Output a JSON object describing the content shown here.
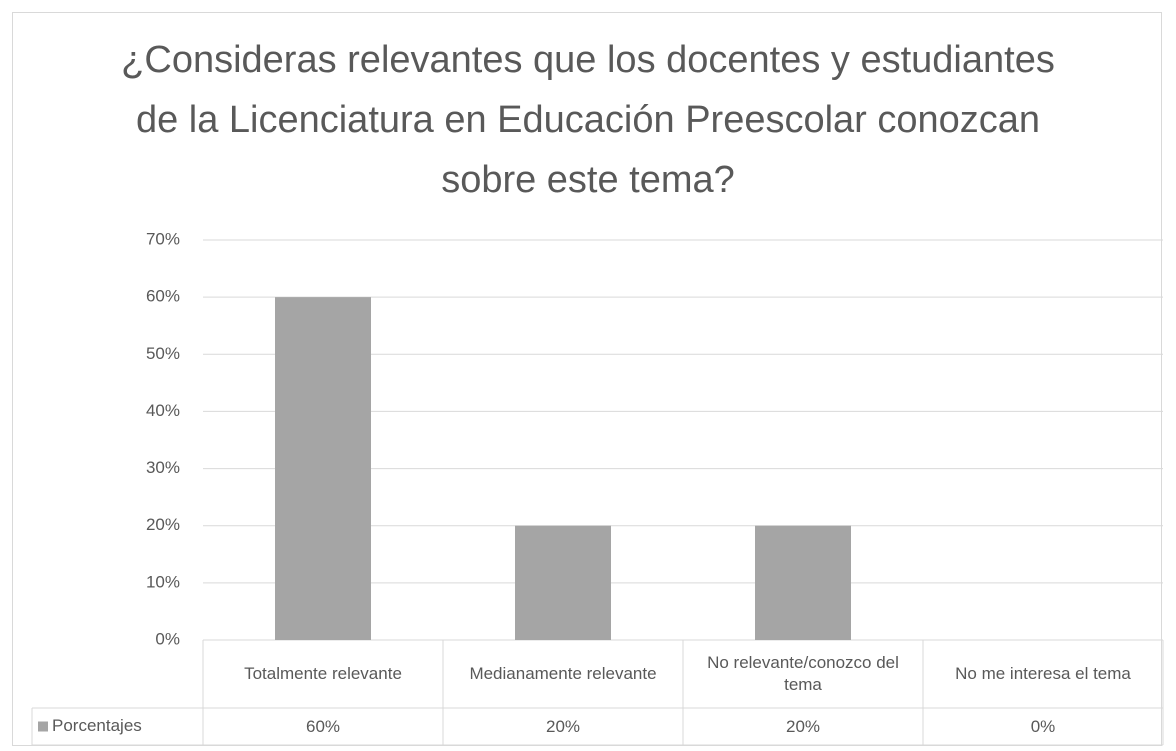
{
  "chart_data": {
    "type": "bar",
    "title": "¿Consideras relevantes que los docentes y estudiantes de la Licenciatura en Educación Preescolar conozcan sobre este tema?",
    "categories": [
      "Totalmente relevante",
      "Medianamente relevante",
      "No relevante/conozco del tema",
      "No me interesa el tema"
    ],
    "series": [
      {
        "name": "Porcentajes",
        "color": "#a5a5a5",
        "values": [
          60,
          20,
          20,
          0
        ],
        "value_labels": [
          "60%",
          "20%",
          "20%",
          "0%"
        ]
      }
    ],
    "ylim": [
      0,
      70
    ],
    "yticks": [
      {
        "value": 0,
        "label": "0%"
      },
      {
        "value": 10,
        "label": "10%"
      },
      {
        "value": 20,
        "label": "20%"
      },
      {
        "value": 30,
        "label": "30%"
      },
      {
        "value": 40,
        "label": "40%"
      },
      {
        "value": 50,
        "label": "50%"
      },
      {
        "value": 60,
        "label": "60%"
      },
      {
        "value": 70,
        "label": "70%"
      }
    ],
    "grid": true
  }
}
